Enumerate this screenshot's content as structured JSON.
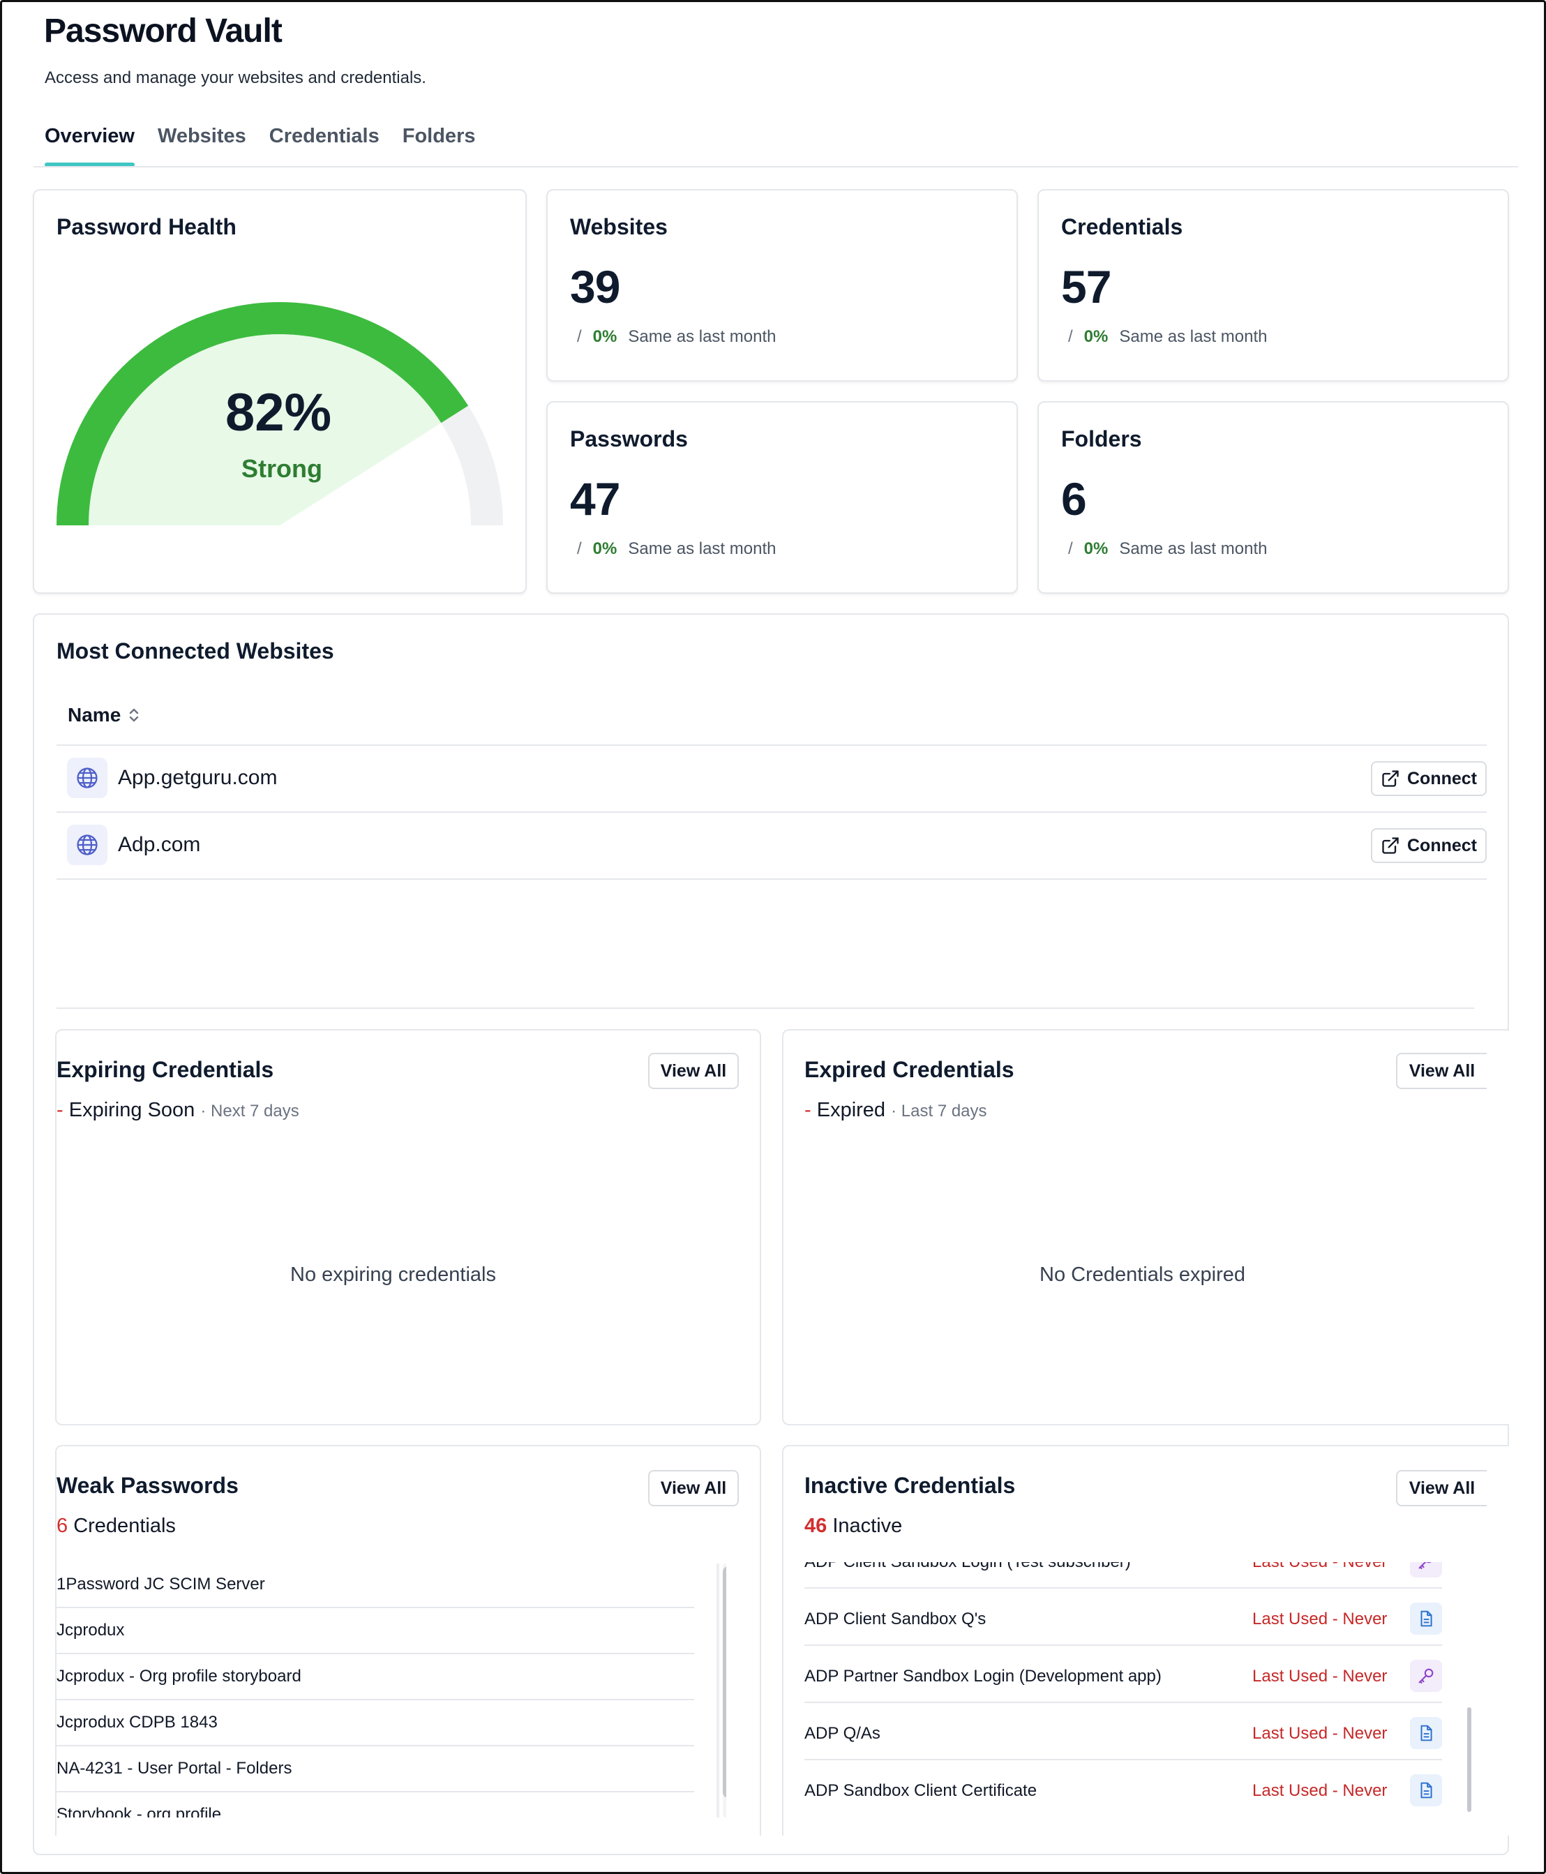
{
  "header": {
    "title": "Password Vault",
    "subtitle": "Access and manage your websites and credentials."
  },
  "tabs": [
    {
      "label": "Overview",
      "active": true
    },
    {
      "label": "Websites",
      "active": false
    },
    {
      "label": "Credentials",
      "active": false
    },
    {
      "label": "Folders",
      "active": false
    }
  ],
  "health": {
    "title": "Password Health",
    "percent_label": "82%",
    "percent_value": 82,
    "status": "Strong",
    "colors": {
      "arc": "#3dbb3f",
      "fill": "#e8f9e8",
      "track": "#f0f1f3"
    }
  },
  "stats": {
    "websites": {
      "title": "Websites",
      "value": "39",
      "slash": "/",
      "pct": "0%",
      "note": "Same as last month"
    },
    "credentials": {
      "title": "Credentials",
      "value": "57",
      "slash": "/",
      "pct": "0%",
      "note": "Same as last month"
    },
    "passwords": {
      "title": "Passwords",
      "value": "47",
      "slash": "/",
      "pct": "0%",
      "note": "Same as last month"
    },
    "folders": {
      "title": "Folders",
      "value": "6",
      "slash": "/",
      "pct": "0%",
      "note": "Same as last month"
    }
  },
  "connected": {
    "title": "Most Connected Websites",
    "column": "Name",
    "rows": [
      {
        "name": "App.getguru.com",
        "action": "Connect"
      },
      {
        "name": "Adp.com",
        "action": "Connect"
      }
    ]
  },
  "expiring": {
    "title": "Expiring Credentials",
    "view_all": "View All",
    "dash": "-",
    "label": "Expiring Soon",
    "meta": "· Next 7 days",
    "empty": "No expiring credentials"
  },
  "expired": {
    "title": "Expired Credentials",
    "view_all": "View All",
    "dash": "-",
    "label": "Expired",
    "meta": "· Last 7 days",
    "empty": "No Credentials expired"
  },
  "weak": {
    "title": "Weak Passwords",
    "view_all": "View All",
    "count": "6",
    "count_label": "Credentials",
    "items": [
      "1Password JC SCIM Server",
      "Jcprodux",
      "Jcprodux - Org profile storyboard",
      "Jcprodux CDPB 1843",
      "NA-4231 - User Portal - Folders",
      "Storybook - org profile"
    ]
  },
  "inactive": {
    "title": "Inactive Credentials",
    "view_all": "View All",
    "count": "46",
    "count_label": "Inactive",
    "items": [
      {
        "name": "ADP Client Sandbox Login (Test subscriber)",
        "status": "Last Used - Never",
        "icon": "key-icon"
      },
      {
        "name": "ADP Client Sandbox Q's",
        "status": "Last Used - Never",
        "icon": "document-icon"
      },
      {
        "name": "ADP Partner Sandbox Login (Development app)",
        "status": "Last Used - Never",
        "icon": "key-icon"
      },
      {
        "name": "ADP Q/As",
        "status": "Last Used - Never",
        "icon": "document-icon"
      },
      {
        "name": "ADP Sandbox Client Certificate",
        "status": "Last Used - Never",
        "icon": "document-icon"
      }
    ]
  }
}
